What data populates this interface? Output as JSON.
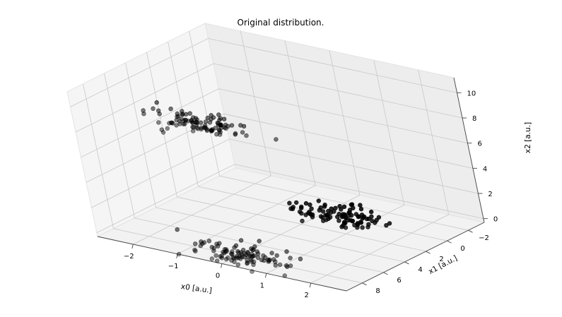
{
  "chart_data": {
    "type": "scatter3d",
    "title": "Original distribution.",
    "xlabel": "x0 [a.u.]",
    "ylabel": "x1 [a.u.]",
    "zlabel": "x2 [a.u.]",
    "xlim": [
      -2.8,
      2.8
    ],
    "ylim": [
      -3.5,
      9.5
    ],
    "zlim": [
      -0.3,
      11.2
    ],
    "xticks": [
      -2,
      -1,
      0,
      1,
      2
    ],
    "yticks": [
      -2,
      0,
      2,
      4,
      6,
      8
    ],
    "zticks": [
      0,
      2,
      4,
      6,
      8,
      10
    ],
    "grid": true,
    "marker_color": "#000000",
    "pane_color": "#f2f2f2",
    "clusters": [
      {
        "center": [
          0.4,
          0.2,
          0.0
        ],
        "spread": [
          0.55,
          0.75,
          0.12
        ],
        "count": 100
      },
      {
        "center": [
          0.3,
          8.2,
          0.0
        ],
        "spread": [
          0.55,
          0.75,
          0.12
        ],
        "count": 100
      },
      {
        "center": [
          -0.4,
          8.0,
          10.0
        ],
        "spread": [
          0.55,
          0.7,
          0.15
        ],
        "count": 100
      }
    ]
  }
}
